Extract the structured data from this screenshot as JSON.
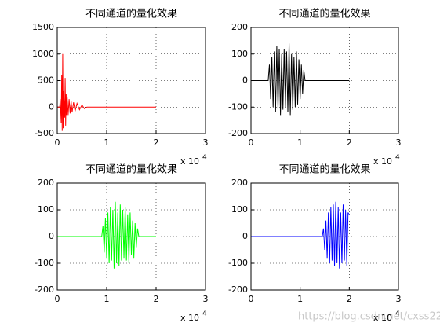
{
  "chart_data": [
    {
      "type": "line",
      "title": "不同通道的量化效果",
      "color": "#ff0000",
      "x": [
        0,
        500,
        600,
        800,
        900,
        1000,
        1100,
        1200,
        1300,
        1500,
        1600,
        1700,
        1800,
        1900,
        2000,
        2200,
        2400,
        2600,
        2800,
        3000,
        3300,
        3600,
        4000,
        4500,
        5000,
        5500,
        6000,
        20000
      ],
      "values": [
        0,
        0,
        150,
        -300,
        600,
        -450,
        1000,
        -400,
        300,
        -200,
        550,
        -350,
        250,
        -150,
        200,
        -150,
        150,
        -120,
        120,
        -100,
        90,
        -80,
        70,
        -50,
        40,
        -30,
        0,
        0
      ],
      "xlim": [
        0,
        30000
      ],
      "xticks": [
        0,
        {
          "value": 10000,
          "label": "1"
        },
        {
          "value": 20000,
          "label": "2"
        },
        {
          "value": 30000,
          "label": "3"
        }
      ],
      "ylim": [
        -500,
        1500
      ],
      "yticks": [
        -500,
        0,
        500,
        1000,
        1500
      ],
      "grid": true,
      "x_exponent_base": "x 10",
      "x_exponent": "4"
    },
    {
      "type": "line",
      "title": "不同通道的量化效果",
      "color": "#000000",
      "x": [
        0,
        3500,
        3750,
        4000,
        4250,
        4500,
        4750,
        5000,
        5250,
        5500,
        5750,
        6000,
        6250,
        6500,
        6750,
        7000,
        7250,
        7500,
        7750,
        8000,
        8250,
        8500,
        8750,
        9000,
        9250,
        9500,
        9750,
        10000,
        10250,
        10500,
        10750,
        11000,
        20000
      ],
      "values": [
        0,
        0,
        60,
        -70,
        90,
        -100,
        110,
        -120,
        130,
        -110,
        120,
        -130,
        100,
        -110,
        120,
        -100,
        110,
        -120,
        140,
        -130,
        100,
        -110,
        90,
        -100,
        110,
        -90,
        80,
        -70,
        60,
        -50,
        40,
        0,
        0
      ],
      "xlim": [
        0,
        30000
      ],
      "xticks": [
        0,
        {
          "value": 10000,
          "label": "1"
        },
        {
          "value": 20000,
          "label": "2"
        },
        {
          "value": 30000,
          "label": "3"
        }
      ],
      "ylim": [
        -200,
        200
      ],
      "yticks": [
        -200,
        -100,
        0,
        100,
        200
      ],
      "grid": true,
      "x_exponent_base": "x 10",
      "x_exponent": "4"
    },
    {
      "type": "line",
      "title": "不同通道的量化效果",
      "color": "#00ff00",
      "x": [
        0,
        9000,
        9250,
        9500,
        9750,
        10000,
        10250,
        10500,
        10750,
        11000,
        11250,
        11500,
        11750,
        12000,
        12250,
        12500,
        12750,
        13000,
        13250,
        13500,
        13750,
        14000,
        14250,
        14500,
        14750,
        15000,
        15250,
        15500,
        15750,
        16000,
        16250,
        16500,
        20000
      ],
      "values": [
        0,
        0,
        40,
        -60,
        70,
        -80,
        90,
        -100,
        110,
        -90,
        100,
        -120,
        130,
        -100,
        90,
        -110,
        120,
        -90,
        100,
        -80,
        110,
        -90,
        80,
        -100,
        90,
        -70,
        60,
        -80,
        50,
        -40,
        30,
        0,
        0
      ],
      "xlim": [
        0,
        30000
      ],
      "xticks": [
        0,
        {
          "value": 10000,
          "label": "1"
        },
        {
          "value": 20000,
          "label": "2"
        },
        {
          "value": 30000,
          "label": "3"
        }
      ],
      "ylim": [
        -200,
        200
      ],
      "yticks": [
        -200,
        -100,
        0,
        100,
        200
      ],
      "grid": true,
      "x_exponent_base": "x 10",
      "x_exponent": "4"
    },
    {
      "type": "line",
      "title": "不同通道的量化效果",
      "color": "#0000ff",
      "x": [
        0,
        14500,
        14750,
        15000,
        15250,
        15500,
        15750,
        16000,
        16250,
        16500,
        16750,
        17000,
        17250,
        17500,
        17750,
        18000,
        18250,
        18500,
        18750,
        19000,
        19250,
        19500,
        19750,
        20000
      ],
      "values": [
        0,
        0,
        30,
        -50,
        60,
        -80,
        90,
        -100,
        110,
        -90,
        120,
        -110,
        130,
        -100,
        110,
        -120,
        90,
        -100,
        120,
        -90,
        100,
        -110,
        90,
        80
      ],
      "xlim": [
        0,
        30000
      ],
      "xticks": [
        0,
        {
          "value": 10000,
          "label": "1"
        },
        {
          "value": 20000,
          "label": "2"
        },
        {
          "value": 30000,
          "label": "3"
        }
      ],
      "ylim": [
        -200,
        200
      ],
      "yticks": [
        -200,
        -100,
        0,
        100,
        200
      ],
      "grid": true,
      "x_exponent_base": "x 10",
      "x_exponent": "4"
    }
  ],
  "watermark": "https://blog.csdn.net/cxss22"
}
